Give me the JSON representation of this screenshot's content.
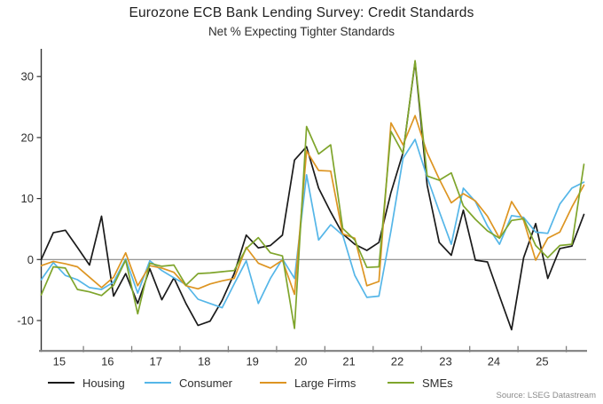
{
  "chart_data": {
    "type": "line",
    "title": "Eurozone ECB Bank Lending Survey: Credit Standards",
    "subtitle": "Net % Expecting Tighter Standards",
    "xlabel": "",
    "ylabel": "",
    "x_axis": {
      "year_labels": [
        "15",
        "16",
        "17",
        "18",
        "19",
        "20",
        "21",
        "22",
        "23",
        "24",
        "25"
      ]
    },
    "y_axis": {
      "ticks": [
        30,
        20,
        10,
        0,
        -10
      ],
      "range": [
        -14.8,
        33.5
      ]
    },
    "grid": "off",
    "zero_line": true,
    "legend_position": "bottom",
    "periods": [
      "2015Q1",
      "2015Q2",
      "2015Q3",
      "2015Q4",
      "2016Q1",
      "2016Q2",
      "2016Q3",
      "2016Q4",
      "2017Q1",
      "2017Q2",
      "2017Q3",
      "2017Q4",
      "2018Q1",
      "2018Q2",
      "2018Q3",
      "2018Q4",
      "2019Q1",
      "2019Q2",
      "2019Q3",
      "2019Q4",
      "2020Q1",
      "2020Q2",
      "2020Q3",
      "2020Q4",
      "2021Q1",
      "2021Q2",
      "2021Q3",
      "2021Q4",
      "2022Q1",
      "2022Q2",
      "2022Q3",
      "2022Q4",
      "2023Q1",
      "2023Q2",
      "2023Q3",
      "2023Q4",
      "2024Q1",
      "2024Q2",
      "2024Q3",
      "2024Q4",
      "2025Q1",
      "2025Q2",
      "2025Q3",
      "2025Q4",
      "2026Q1",
      "2026Q2"
    ],
    "series": [
      {
        "name": "Housing",
        "color": "#1a1a1a",
        "values": [
          0,
          4.4,
          4.8,
          2.0,
          -0.9,
          7.1,
          -6.0,
          -2.3,
          -7.2,
          -1.5,
          -6.6,
          -3.0,
          -7.2,
          -10.8,
          -10.1,
          -6.7,
          -2.3,
          4.0,
          1.9,
          2.3,
          4.0,
          16.3,
          18.5,
          11.7,
          7.8,
          4.2,
          2.5,
          1.5,
          2.8,
          11.0,
          17.5,
          32.4,
          12.2,
          2.8,
          0.7,
          8.1,
          -0.1,
          -0.4,
          -6.0,
          -11.5,
          0.3,
          5.9,
          -3.1,
          1.8,
          2.2,
          7.4
        ]
      },
      {
        "name": "Consumer",
        "color": "#55b6e8",
        "values": [
          -3.3,
          -0.5,
          -2.6,
          -3.3,
          -4.6,
          -4.9,
          -3.7,
          0.1,
          -5.5,
          -0.2,
          -1.8,
          -3.0,
          -4.1,
          -6.5,
          -7.2,
          -7.9,
          -4.0,
          -0.2,
          -7.2,
          -3.1,
          0.1,
          -3.1,
          13.9,
          3.2,
          5.7,
          4.0,
          -2.6,
          -6.2,
          -6.0,
          4.7,
          16.6,
          19.7,
          13.5,
          7.9,
          2.5,
          11.7,
          9.5,
          5.5,
          2.5,
          7.2,
          6.9,
          4.5,
          4.3,
          9.1,
          11.7,
          12.7
        ]
      },
      {
        "name": "Large Firms",
        "color": "#dd9522",
        "values": [
          -1.0,
          -0.3,
          -0.7,
          -1.2,
          -2.9,
          -4.6,
          -2.9,
          1.1,
          -4.3,
          -1.0,
          -1.4,
          -2.1,
          -4.3,
          -4.8,
          -4.0,
          -3.5,
          -3.1,
          2.0,
          -0.6,
          -1.4,
          -0.1,
          -5.7,
          17.8,
          14.6,
          14.5,
          4.2,
          3.5,
          -4.3,
          -3.6,
          22.4,
          18.8,
          23.6,
          17.5,
          13.2,
          9.3,
          10.8,
          9.6,
          7.1,
          3.5,
          9.5,
          6.4,
          -0.1,
          3.5,
          4.5,
          8.6,
          12.2
        ]
      },
      {
        "name": "SMEs",
        "color": "#7fa52c",
        "values": [
          -5.8,
          -1.2,
          -1.4,
          -4.9,
          -5.3,
          -5.9,
          -4.2,
          -0.1,
          -8.9,
          -0.6,
          -1.1,
          -0.9,
          -4.2,
          -2.3,
          -2.2,
          -2.0,
          -1.8,
          1.8,
          3.6,
          1.1,
          0.6,
          -11.3,
          21.8,
          17.3,
          18.8,
          5.1,
          3.2,
          -1.3,
          -1.2,
          21.0,
          17.4,
          32.6,
          13.7,
          13.0,
          14.2,
          8.8,
          6.6,
          4.7,
          3.5,
          6.4,
          6.7,
          2.3,
          0.3,
          2.3,
          2.5,
          15.6
        ]
      }
    ],
    "source": "Source: LSEG Datastream"
  }
}
